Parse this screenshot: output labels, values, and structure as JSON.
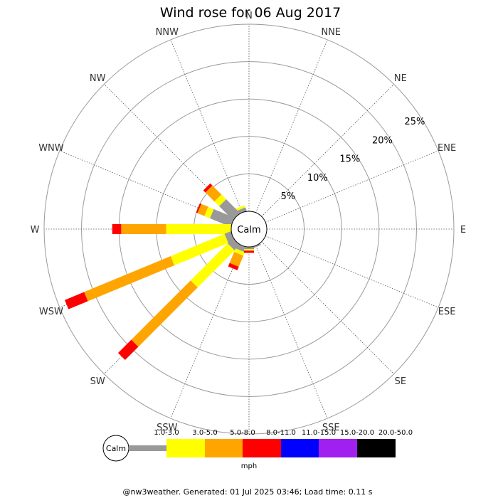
{
  "chart_data": {
    "type": "wind-rose",
    "title": "Wind rose for 06 Aug 2017",
    "calm_label": "Calm",
    "directions": [
      "N",
      "NNE",
      "NE",
      "ENE",
      "E",
      "ESE",
      "SE",
      "SSE",
      "S",
      "SSW",
      "SW",
      "WSW",
      "W",
      "WNW",
      "NW",
      "NNW"
    ],
    "radial_ticks": [
      5,
      10,
      15,
      20,
      25
    ],
    "radial_tick_labels": [
      "5%",
      "10%",
      "15%",
      "20%",
      "25%"
    ],
    "radial_max": 25,
    "unit": "mph",
    "bins": [
      {
        "label": "1.0-3.0",
        "color": "#999999"
      },
      {
        "label": "3.0-5.0",
        "color": "#ffff00"
      },
      {
        "label": "5.0-8.0",
        "color": "#ffa500"
      },
      {
        "label": "8.0-11.0",
        "color": "#ff0000"
      },
      {
        "label": "11.0-15.0",
        "color": "#0000ff"
      },
      {
        "label": "15.0-20.0",
        "color": "#a020f0"
      },
      {
        "label": "20.0-50.0",
        "color": "#000000"
      }
    ],
    "series": [
      {
        "direction": "NNW",
        "values": [
          0.5,
          0.3,
          0,
          0,
          0,
          0,
          0
        ]
      },
      {
        "direction": "NW",
        "values": [
          2.6,
          0.9,
          1.7,
          0.4,
          0,
          0,
          0
        ]
      },
      {
        "direction": "WNW",
        "values": [
          3.0,
          0.8,
          1.0,
          0.2,
          0,
          0,
          0
        ]
      },
      {
        "direction": "W",
        "values": [
          0,
          8.7,
          6.0,
          1.2,
          0,
          0,
          0
        ]
      },
      {
        "direction": "WSW",
        "values": [
          0.9,
          7.8,
          12.5,
          2.8,
          0,
          0,
          0
        ]
      },
      {
        "direction": "SW",
        "values": [
          1.0,
          7.0,
          11.2,
          2.5,
          0,
          0,
          0
        ]
      },
      {
        "direction": "SSW",
        "values": [
          0.7,
          0.5,
          1.6,
          0.5,
          0,
          0,
          0
        ]
      },
      {
        "direction": "S",
        "values": [
          0.3,
          0.2,
          0,
          0.3,
          0,
          0,
          0
        ]
      },
      {
        "direction": "SSE",
        "values": [
          0.2,
          0,
          0,
          0,
          0,
          0,
          0
        ]
      }
    ]
  },
  "footer": "@nw3weather. Generated: 01 Jul 2025 03:46; Load time: 0.11 s"
}
